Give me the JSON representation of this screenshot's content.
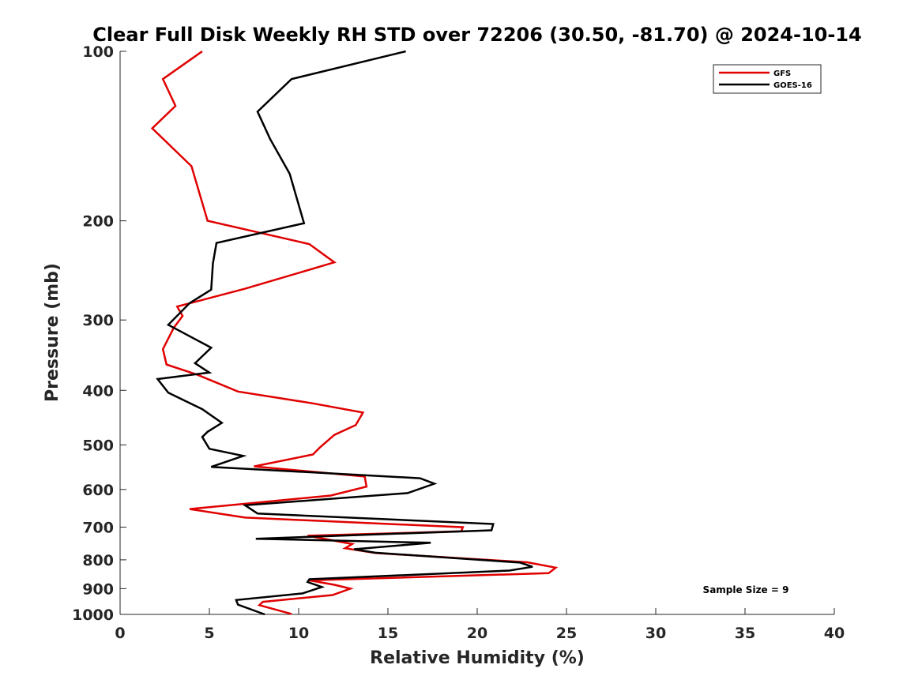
{
  "chart_data": {
    "type": "line",
    "title": "Clear Full Disk Weekly RH STD over 72206 (30.50, -81.70) @ 2024-10-14",
    "xlabel": "Relative Humidity (%)",
    "ylabel": "Pressure (mb)",
    "xlim": [
      0,
      40
    ],
    "ylim": [
      100,
      1000
    ],
    "y_scale": "log",
    "y_reversed": true,
    "grid": false,
    "legend_position": "top-right",
    "x_ticks": [
      "0",
      "5",
      "10",
      "15",
      "20",
      "25",
      "30",
      "35",
      "40"
    ],
    "y_ticks": [
      "100",
      "200",
      "300",
      "400",
      "500",
      "600",
      "700",
      "800",
      "900",
      "1000"
    ],
    "series": [
      {
        "name": "GFS",
        "color": "#e00000",
        "x": [
          4.6,
          2.4,
          3.1,
          1.8,
          4.0,
          4.9,
          10.6,
          12.0,
          7.0,
          3.2,
          3.5,
          3.0,
          2.4,
          2.6,
          4.3,
          6.6,
          10.8,
          13.6,
          13.2,
          12.0,
          11.2,
          10.8,
          7.5,
          13.7,
          13.8,
          11.8,
          3.9,
          7.0,
          19.2,
          19.1,
          10.5,
          13.0,
          12.6,
          14.3,
          22.8,
          24.4,
          24.0,
          10.6,
          12.0,
          12.9,
          11.9,
          8.0,
          7.8,
          9.6
        ],
        "y": [
          100,
          112,
          125,
          137,
          160,
          200,
          220,
          237,
          264,
          284,
          295,
          310,
          338,
          360,
          375,
          402,
          422,
          438,
          461,
          480,
          505,
          520,
          546,
          569,
          593,
          615,
          650,
          673,
          700,
          712,
          725,
          750,
          763,
          778,
          808,
          826,
          845,
          870,
          886,
          900,
          924,
          950,
          963,
          998
        ]
      },
      {
        "name": "GOES-16",
        "color": "#000000",
        "x": [
          16.0,
          9.6,
          7.7,
          8.4,
          9.5,
          10.3,
          5.4,
          5.2,
          5.1,
          3.9,
          2.7,
          5.1,
          4.2,
          5.0,
          2.1,
          2.7,
          4.6,
          5.7,
          4.9,
          4.6,
          5.0,
          6.9,
          5.1,
          16.8,
          17.6,
          16.1,
          7.0,
          7.7,
          20.9,
          20.8,
          7.6,
          17.4,
          13.1,
          14.3,
          22.4,
          23.1,
          21.8,
          10.6,
          10.5,
          11.3,
          10.2,
          6.5,
          6.6,
          8.1
        ],
        "y": [
          100,
          112,
          128,
          143,
          165,
          202,
          219,
          238,
          265,
          280,
          306,
          336,
          358,
          372,
          382,
          404,
          432,
          457,
          474,
          484,
          508,
          523,
          547,
          573,
          586,
          609,
          640,
          662,
          691,
          709,
          734,
          746,
          766,
          777,
          809,
          823,
          836,
          866,
          876,
          894,
          918,
          943,
          961,
          1000
        ]
      }
    ],
    "annotation": "Sample Size = 9"
  }
}
